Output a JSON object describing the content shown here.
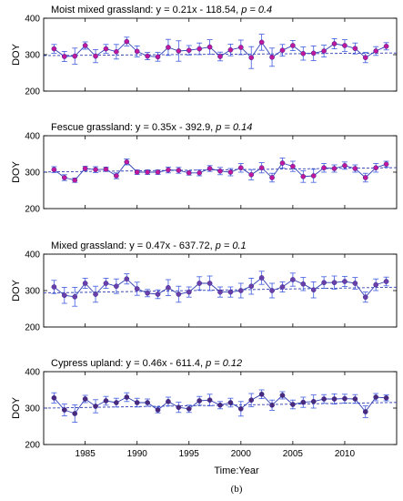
{
  "figure": {
    "xlabel": "Time:Year",
    "caption": "(b)",
    "ylabel": "DOY"
  },
  "chart_data": [
    {
      "type": "line",
      "title": "Moist mixed grassland: y = 0.21x - 118.54,",
      "p_text": "p = 0.4",
      "ylabel": "DOY",
      "xlim": [
        1981,
        2015
      ],
      "ylim": [
        200,
        400
      ],
      "yticks": [
        "400",
        "300",
        "200"
      ],
      "xticks": [],
      "marker_color": "#c0189a",
      "line_color": "#2f3fb3",
      "errorbar_color": "#3e5be0",
      "fit_color": "#2f3fb3",
      "fit": {
        "slope": 0.21,
        "intercept": -118.54
      },
      "x": [
        1982,
        1983,
        1984,
        1985,
        1986,
        1987,
        1988,
        1989,
        1990,
        1991,
        1992,
        1993,
        1994,
        1995,
        1996,
        1997,
        1998,
        1999,
        2000,
        2001,
        2002,
        2003,
        2004,
        2005,
        2006,
        2007,
        2008,
        2009,
        2010,
        2011,
        2012,
        2013,
        2014
      ],
      "y": [
        316,
        295,
        296,
        325,
        296,
        316,
        308,
        336,
        309,
        296,
        294,
        320,
        310,
        312,
        316,
        321,
        295,
        313,
        320,
        292,
        334,
        293,
        312,
        325,
        303,
        304,
        310,
        330,
        325,
        317,
        292,
        310,
        323
      ],
      "err": [
        12,
        14,
        22,
        10,
        18,
        12,
        20,
        12,
        15,
        10,
        12,
        22,
        28,
        13,
        16,
        20,
        12,
        16,
        20,
        30,
        22,
        25,
        16,
        14,
        18,
        20,
        16,
        14,
        16,
        15,
        14,
        12,
        10
      ]
    },
    {
      "type": "line",
      "title": "Fescue grassland: y = 0.35x - 392.9,",
      "p_text": "p = 0.14",
      "ylabel": "DOY",
      "xlim": [
        1981,
        2015
      ],
      "ylim": [
        200,
        400
      ],
      "yticks": [
        "400",
        "300",
        "200"
      ],
      "xticks": [],
      "marker_color": "#c0189a",
      "line_color": "#2f3fb3",
      "errorbar_color": "#3e5be0",
      "fit_color": "#2f3fb3",
      "fit": {
        "slope": 0.35,
        "intercept": -392.9
      },
      "x": [
        1982,
        1983,
        1984,
        1985,
        1986,
        1987,
        1988,
        1989,
        1990,
        1991,
        1992,
        1993,
        1994,
        1995,
        1996,
        1997,
        1998,
        1999,
        2000,
        2001,
        2002,
        2003,
        2004,
        2005,
        2006,
        2007,
        2008,
        2009,
        2010,
        2011,
        2012,
        2013,
        2014
      ],
      "y": [
        307,
        285,
        278,
        310,
        307,
        308,
        290,
        328,
        300,
        300,
        300,
        306,
        305,
        298,
        298,
        310,
        303,
        300,
        312,
        293,
        312,
        285,
        325,
        316,
        288,
        290,
        312,
        310,
        318,
        310,
        285,
        312,
        322
      ],
      "err": [
        8,
        8,
        6,
        6,
        8,
        6,
        8,
        8,
        6,
        6,
        6,
        8,
        8,
        6,
        8,
        8,
        10,
        10,
        12,
        14,
        14,
        12,
        14,
        14,
        16,
        18,
        12,
        10,
        10,
        10,
        12,
        12,
        8
      ]
    },
    {
      "type": "line",
      "title": "Mixed grassland: y = 0.47x - 637.72,",
      "p_text": "p = 0.1",
      "ylabel": "DOY",
      "xlim": [
        1981,
        2015
      ],
      "ylim": [
        200,
        400
      ],
      "yticks": [
        "400",
        "300",
        "200"
      ],
      "xticks": [],
      "marker_color": "#6a3fa8",
      "line_color": "#2f3fb3",
      "errorbar_color": "#3e5be0",
      "fit_color": "#2f3fb3",
      "fit": {
        "slope": 0.47,
        "intercept": -637.72
      },
      "x": [
        1982,
        1983,
        1984,
        1985,
        1986,
        1987,
        1988,
        1989,
        1990,
        1991,
        1992,
        1993,
        1994,
        1995,
        1996,
        1997,
        1998,
        1999,
        2000,
        2001,
        2002,
        2003,
        2004,
        2005,
        2006,
        2007,
        2008,
        2009,
        2010,
        2011,
        2012,
        2013,
        2014
      ],
      "y": [
        310,
        287,
        283,
        320,
        290,
        320,
        312,
        332,
        305,
        293,
        290,
        308,
        290,
        296,
        320,
        320,
        296,
        296,
        300,
        312,
        335,
        300,
        310,
        330,
        318,
        302,
        322,
        322,
        325,
        320,
        282,
        316,
        325
      ],
      "err": [
        18,
        22,
        26,
        14,
        22,
        14,
        20,
        14,
        18,
        10,
        12,
        22,
        22,
        14,
        18,
        20,
        14,
        14,
        20,
        22,
        18,
        20,
        14,
        18,
        18,
        22,
        16,
        18,
        14,
        16,
        14,
        16,
        12
      ]
    },
    {
      "type": "line",
      "title": "Cypress upland: y = 0.46x - 611.4,",
      "p_text": "p = 0.12",
      "ylabel": "DOY",
      "xlim": [
        1981,
        2015
      ],
      "ylim": [
        200,
        400
      ],
      "yticks": [
        "400",
        "300",
        "200"
      ],
      "xticks": [
        "1985",
        "1990",
        "1995",
        "2000",
        "2005",
        "2010"
      ],
      "marker_color": "#4a2a7a",
      "line_color": "#2f3fb3",
      "errorbar_color": "#3e5be0",
      "fit_color": "#2f3fb3",
      "fit": {
        "slope": 0.46,
        "intercept": -611.4
      },
      "x": [
        1982,
        1983,
        1984,
        1985,
        1986,
        1987,
        1988,
        1989,
        1990,
        1991,
        1992,
        1993,
        1994,
        1995,
        1996,
        1997,
        1998,
        1999,
        2000,
        2001,
        2002,
        2003,
        2004,
        2005,
        2006,
        2007,
        2008,
        2009,
        2010,
        2011,
        2012,
        2013,
        2014
      ],
      "y": [
        328,
        295,
        285,
        325,
        305,
        320,
        315,
        330,
        315,
        315,
        295,
        318,
        302,
        298,
        320,
        322,
        308,
        315,
        298,
        322,
        338,
        308,
        335,
        310,
        316,
        318,
        325,
        325,
        326,
        325,
        290,
        330,
        328
      ],
      "err": [
        14,
        16,
        24,
        10,
        18,
        12,
        12,
        12,
        12,
        10,
        8,
        12,
        14,
        10,
        12,
        16,
        10,
        12,
        20,
        18,
        12,
        14,
        10,
        12,
        14,
        18,
        12,
        14,
        12,
        12,
        16,
        10,
        8
      ]
    }
  ]
}
